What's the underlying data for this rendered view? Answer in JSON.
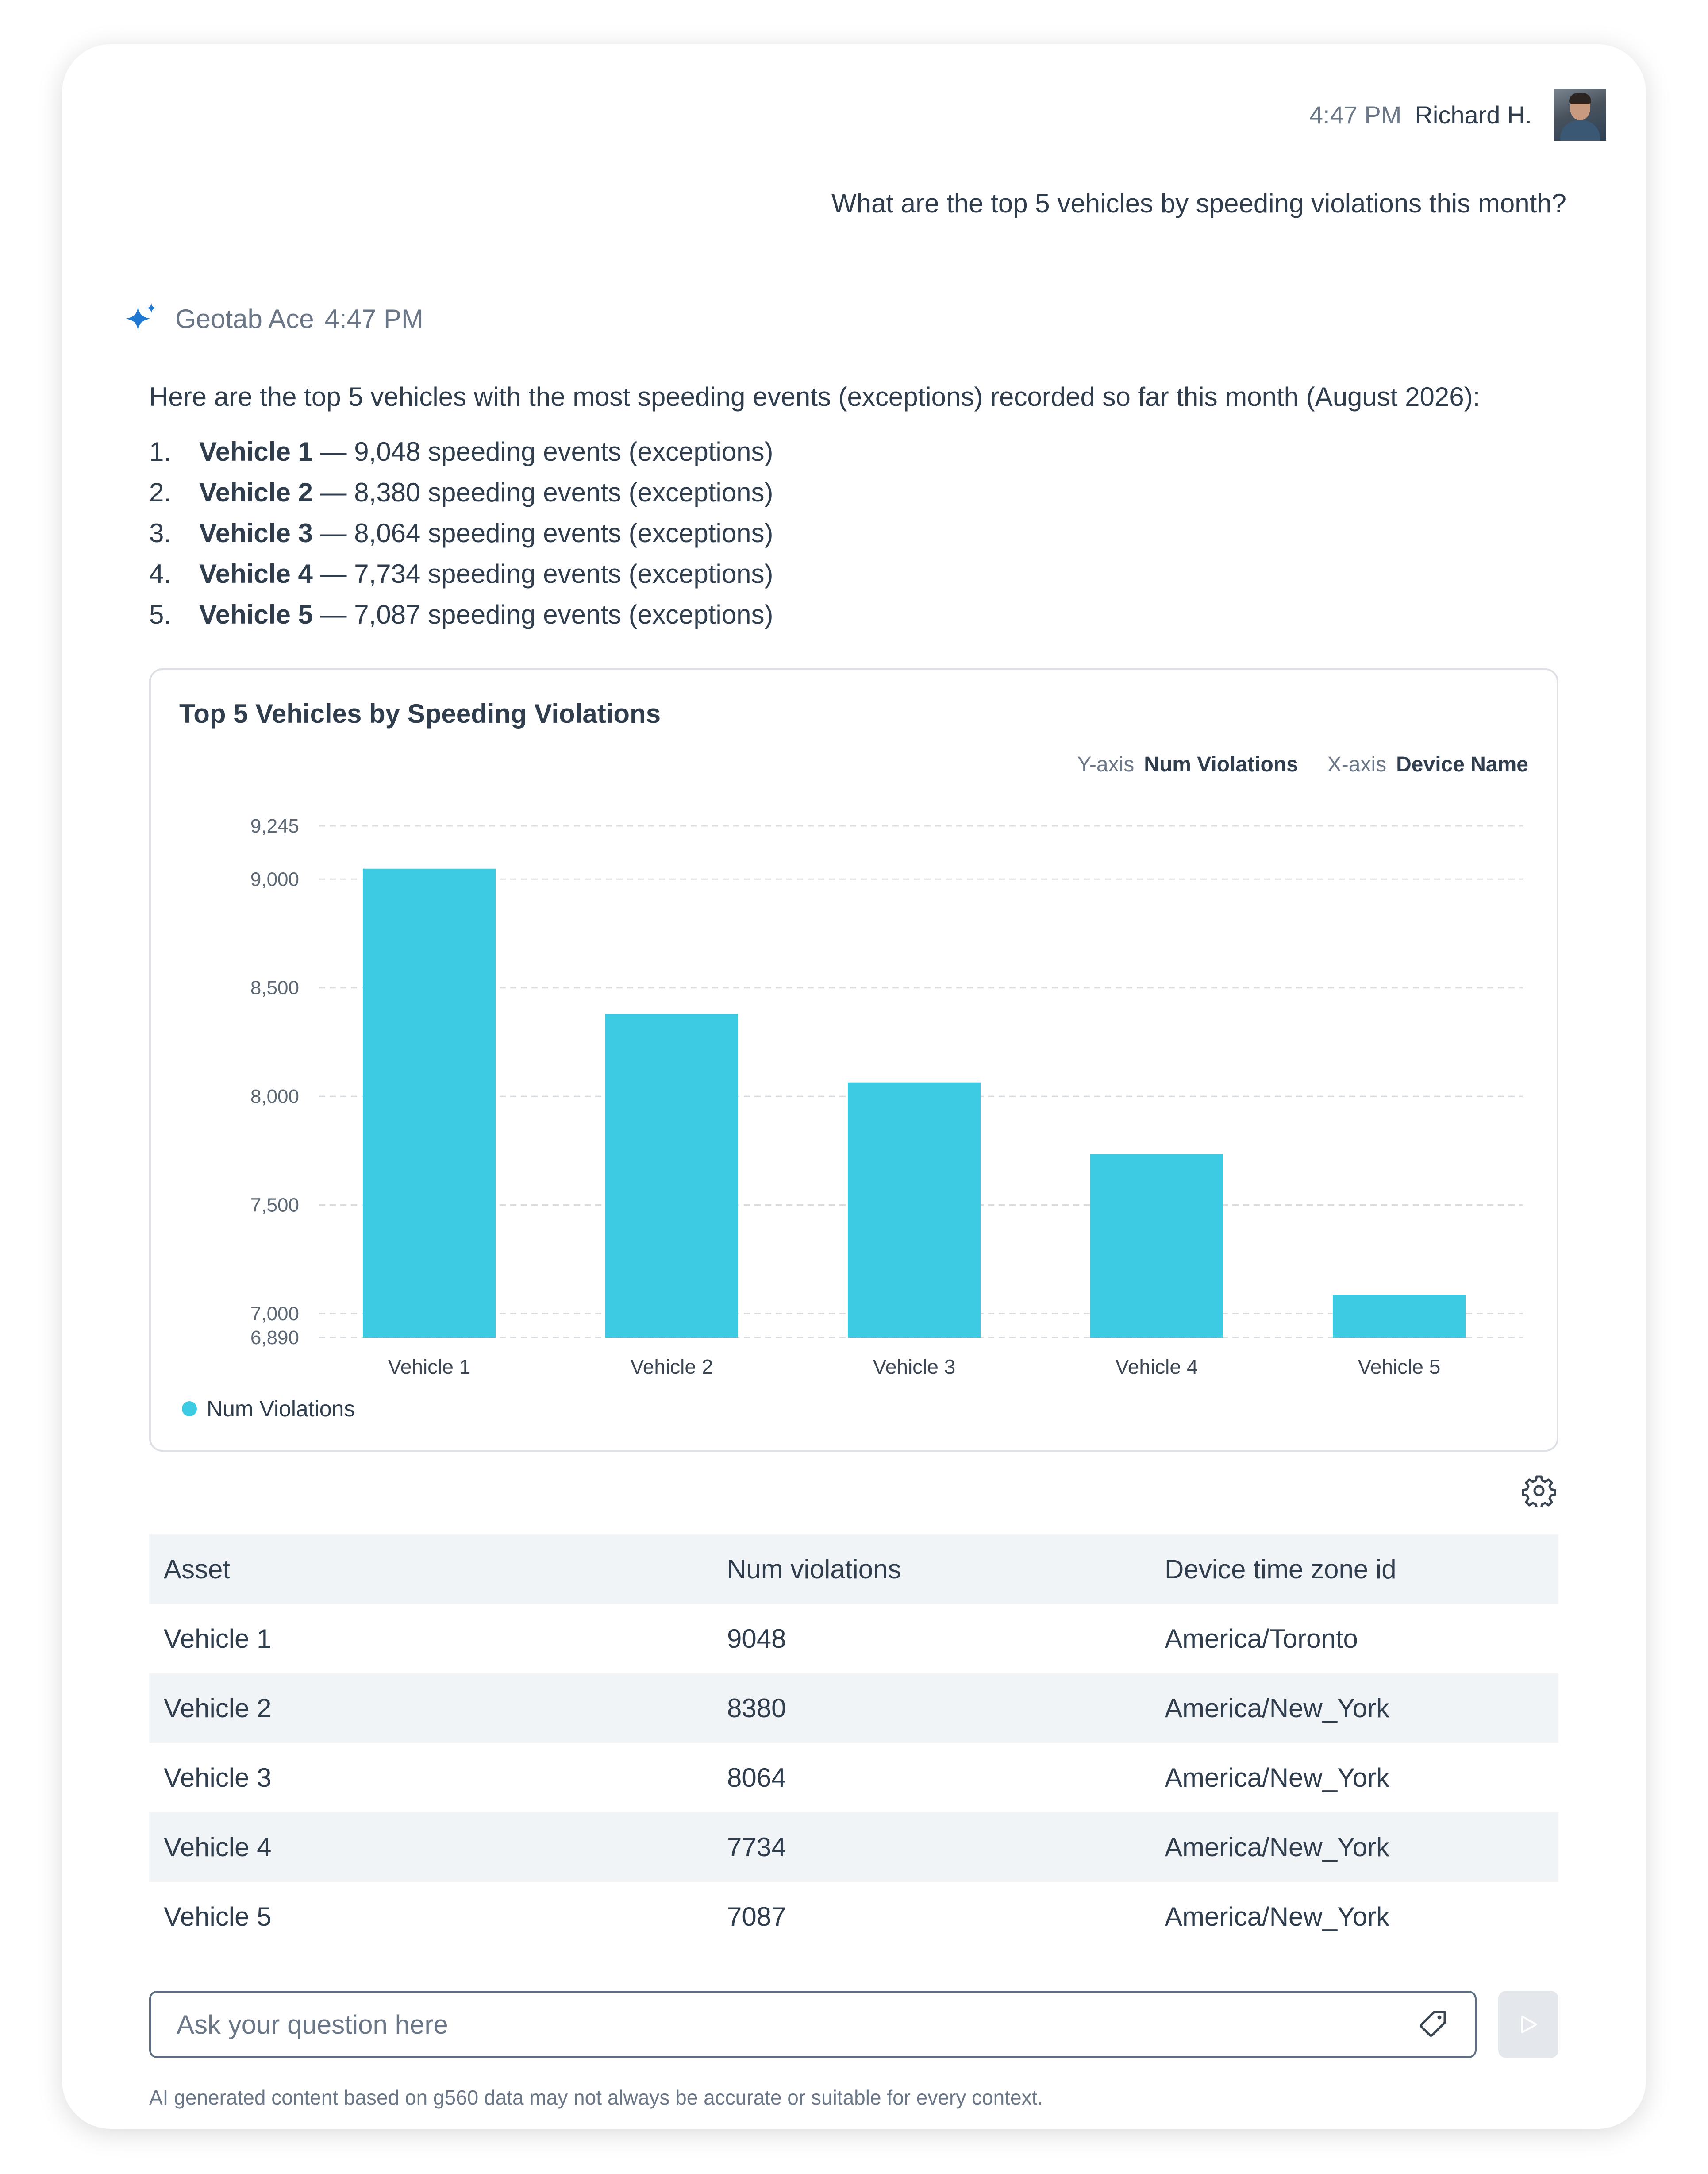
{
  "user_message": {
    "time": "4:47 PM",
    "name": "Richard H.",
    "text": "What are the top 5 vehicles by speeding violations this month?"
  },
  "assistant": {
    "name": "Geotab Ace",
    "time": "4:47 PM",
    "intro": "Here are the top 5 vehicles with the most speeding events (exceptions) recorded so far this month (August 2026):",
    "items": [
      {
        "num": "1.",
        "vehicle": "Vehicle 1",
        "detail": " — 9,048 speeding events (exceptions)"
      },
      {
        "num": "2.",
        "vehicle": "Vehicle 2",
        "detail": " — 8,380 speeding events (exceptions)"
      },
      {
        "num": "3.",
        "vehicle": "Vehicle 3",
        "detail": " — 8,064 speeding events (exceptions)"
      },
      {
        "num": "4.",
        "vehicle": "Vehicle 4",
        "detail": " — 7,734 speeding events (exceptions)"
      },
      {
        "num": "5.",
        "vehicle": "Vehicle 5",
        "detail": " — 7,087 speeding events (exceptions)"
      }
    ]
  },
  "chart": {
    "y_axis_label": "Y-axis",
    "y_axis_value": "Num Violations",
    "x_axis_label": "X-axis",
    "x_axis_value": "Device Name",
    "legend": "Num Violations"
  },
  "chart_data": {
    "type": "bar",
    "title": "Top 5 Vehicles by Speeding Violations",
    "categories": [
      "Vehicle 1",
      "Vehicle 2",
      "Vehicle 3",
      "Vehicle 4",
      "Vehicle 5"
    ],
    "series": [
      {
        "name": "Num Violations",
        "values": [
          9048,
          8380,
          8064,
          7734,
          7087
        ],
        "color": "#3ccbe3"
      }
    ],
    "xlabel": "Device Name",
    "ylabel": "Num Violations",
    "ylim": [
      6890,
      9245
    ],
    "yticks": [
      9245,
      9000,
      8500,
      8000,
      7500,
      7000,
      6890
    ],
    "ytick_labels": [
      "9,245",
      "9,000",
      "8,500",
      "8,000",
      "7,500",
      "7,000",
      "6,890"
    ],
    "grid": true,
    "legend_position": "bottom-left"
  },
  "table": {
    "headers": [
      "Asset",
      "Num violations",
      "Device time zone id"
    ],
    "rows": [
      [
        "Vehicle 1",
        "9048",
        "America/Toronto"
      ],
      [
        "Vehicle 2",
        "8380",
        "America/New_York"
      ],
      [
        "Vehicle 3",
        "8064",
        "America/New_York"
      ],
      [
        "Vehicle 4",
        "7734",
        "America/New_York"
      ],
      [
        "Vehicle 5",
        "7087",
        "America/New_York"
      ]
    ]
  },
  "input": {
    "placeholder": "Ask your question here"
  },
  "disclaimer": "AI generated content based on g560 data may not always be accurate or suitable for every context.",
  "colors": {
    "accent": "#3ccbe3",
    "ace_icon": "#1f78d1",
    "text": "#2f3d4d",
    "muted": "#6b7786"
  },
  "icons": {
    "assistant": "sparkle-icon",
    "settings": "gear-icon",
    "tag": "tag-icon",
    "send": "send-icon"
  }
}
